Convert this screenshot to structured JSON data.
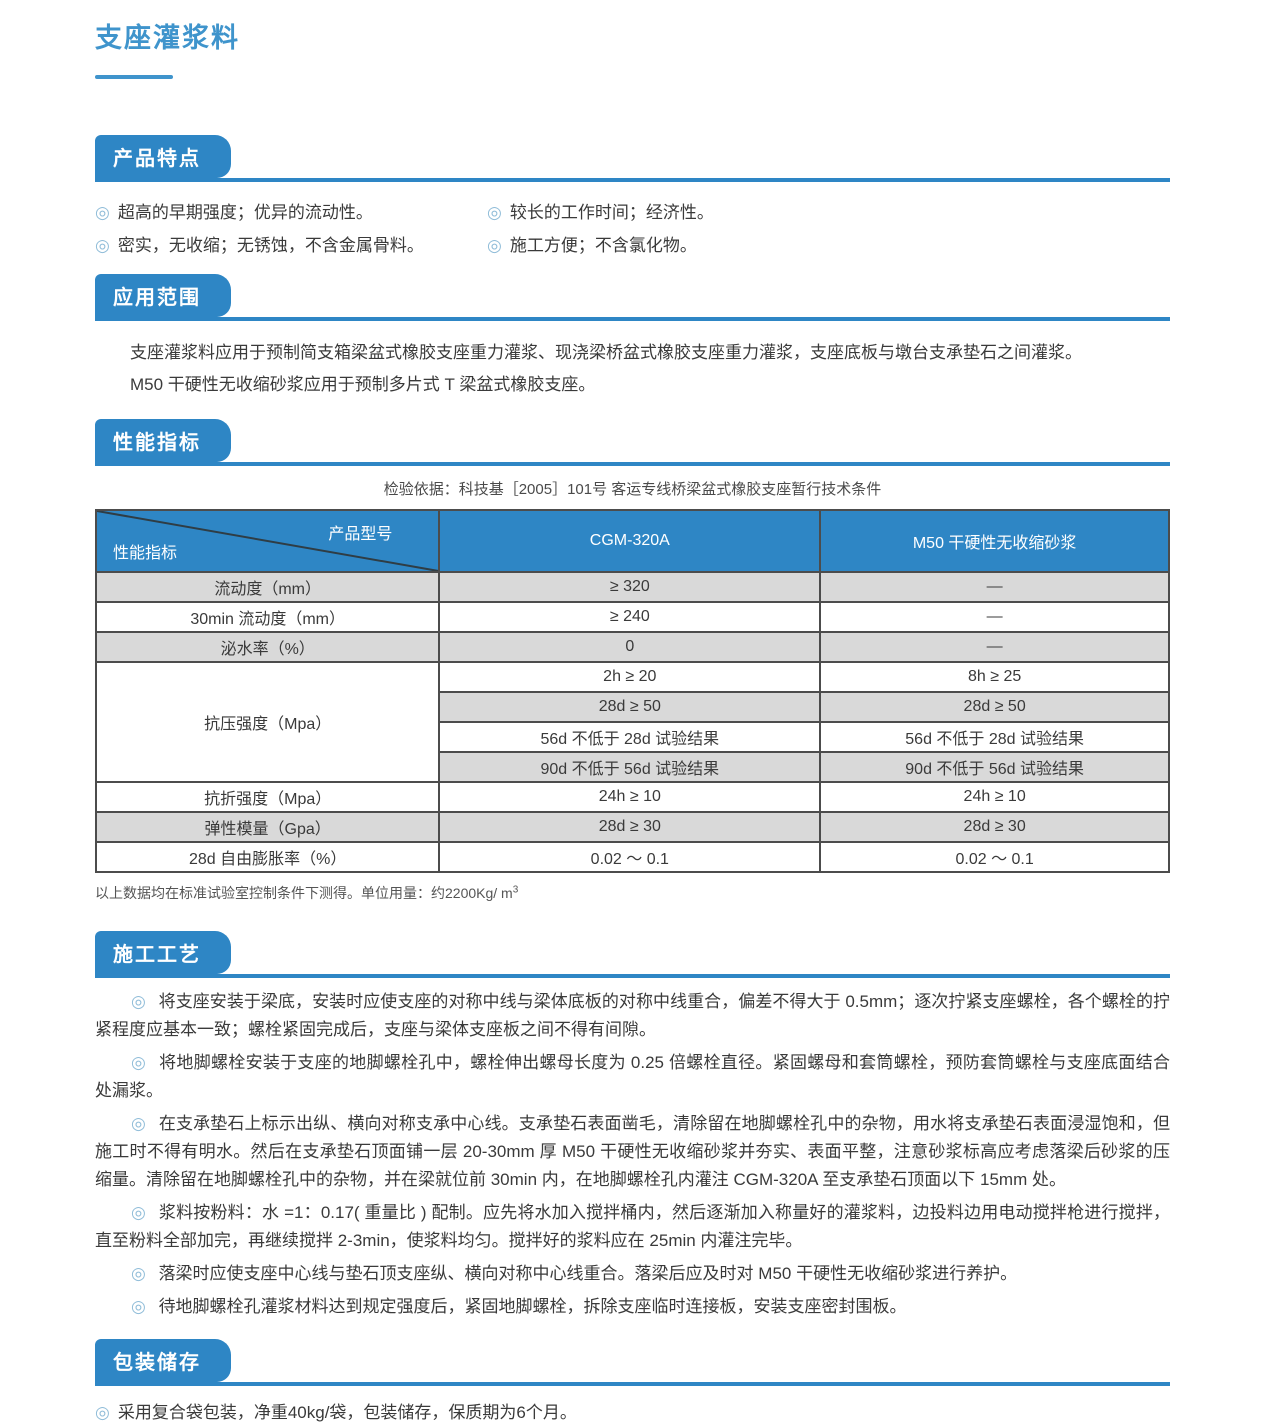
{
  "page": {
    "title": "支座灌浆料"
  },
  "colors": {
    "accent_blue": "#2e86c5",
    "title_blue": "#3f94cc",
    "row_shade": "#d9d9d9",
    "table_border": "#4c4c4c",
    "bullet_ring": "#8fbcd8"
  },
  "bullet_icon": "◎",
  "features": {
    "header": "产品特点",
    "left": [
      "超高的早期强度；优异的流动性。",
      "密实，无收缩；无锈蚀，不含金属骨料。"
    ],
    "right": [
      "较长的工作时间；经济性。",
      "施工方便；不含氯化物。"
    ]
  },
  "application": {
    "header": "应用范围",
    "lines": [
      "支座灌浆料应用于预制简支箱梁盆式橡胶支座重力灌浆、现浇梁桥盆式橡胶支座重力灌浆，支座底板与墩台支承垫石之间灌浆。",
      "M50 干硬性无收缩砂浆应用于预制多片式 T 梁盆式橡胶支座。"
    ]
  },
  "performance": {
    "header": "性能指标",
    "basis": "检验依据：科技基［2005］101号 客运专线桥梁盆式橡胶支座暂行技术条件",
    "table": {
      "corner_top": "产品型号",
      "corner_bottom": "性能指标",
      "columns": [
        "CGM-320A",
        "M50 干硬性无收缩砂浆"
      ],
      "rows": [
        {
          "label": "流动度（mm）",
          "cgm": "≥ 320",
          "m50": "—",
          "shade": true
        },
        {
          "label": "30min 流动度（mm）",
          "cgm": "≥ 240",
          "m50": "—",
          "shade": false
        },
        {
          "label": "泌水率（%）",
          "cgm": "0",
          "m50": "—",
          "shade": true
        },
        {
          "label": "抗压强度（Mpa）",
          "rowspan": 4,
          "cgm": "2h ≥ 20",
          "m50": "8h ≥ 25",
          "shade": false
        },
        {
          "cgm": "28d ≥ 50",
          "m50": "28d ≥ 50",
          "shade": true
        },
        {
          "cgm": "56d 不低于 28d 试验结果",
          "m50": "56d 不低于 28d 试验结果",
          "shade": false
        },
        {
          "cgm": "90d 不低于 56d 试验结果",
          "m50": "90d 不低于 56d 试验结果",
          "shade": true
        },
        {
          "label": "抗折强度（Mpa）",
          "cgm": "24h ≥ 10",
          "m50": "24h ≥ 10",
          "shade": false
        },
        {
          "label": "弹性模量（Gpa）",
          "cgm": "28d ≥ 30",
          "m50": "28d ≥ 30",
          "shade": true
        },
        {
          "label": "28d 自由膨胀率（%）",
          "cgm": "0.02 ～ 0.1",
          "m50": "0.02 ～ 0.1",
          "shade": false
        }
      ]
    },
    "footnote": "以上数据均在标准试验室控制条件下测得。单位用量：约2200Kg/ m",
    "footnote_sup": "3"
  },
  "construction": {
    "header": "施工工艺",
    "paragraphs": [
      "将支座安装于梁底，安装时应使支座的对称中线与梁体底板的对称中线重合，偏差不得大于 0.5mm；逐次拧紧支座螺栓，各个螺栓的拧紧程度应基本一致；螺栓紧固完成后，支座与梁体支座板之间不得有间隙。",
      "将地脚螺栓安装于支座的地脚螺栓孔中，螺栓伸出螺母长度为 0.25 倍螺栓直径。紧固螺母和套筒螺栓，预防套筒螺栓与支座底面结合处漏浆。",
      "在支承垫石上标示出纵、横向对称支承中心线。支承垫石表面凿毛，清除留在地脚螺栓孔中的杂物，用水将支承垫石表面浸湿饱和，但施工时不得有明水。然后在支承垫石顶面铺一层 20-30mm 厚 M50 干硬性无收缩砂浆并夯实、表面平整，注意砂浆标高应考虑落梁后砂浆的压缩量。清除留在地脚螺栓孔中的杂物，并在梁就位前 30min 内，在地脚螺栓孔内灌注 CGM-320A 至支承垫石顶面以下 15mm 处。",
      "浆料按粉料：水 =1：0.17( 重量比 ) 配制。应先将水加入搅拌桶内，然后逐渐加入称量好的灌浆料，边投料边用电动搅拌枪进行搅拌，直至粉料全部加完，再继续搅拌 2-3min，使浆料均匀。搅拌好的浆料应在 25min 内灌注完毕。",
      "落梁时应使支座中心线与垫石顶支座纵、横向对称中心线重合。落梁后应及时对 M50 干硬性无收缩砂浆进行养护。",
      "待地脚螺栓孔灌浆材料达到规定强度后，紧固地脚螺栓，拆除支座临时连接板，安装支座密封围板。"
    ]
  },
  "packaging": {
    "header": "包装储存",
    "item": "采用复合袋包装，净重40kg/袋，包装储存，保质期为6个月。"
  }
}
